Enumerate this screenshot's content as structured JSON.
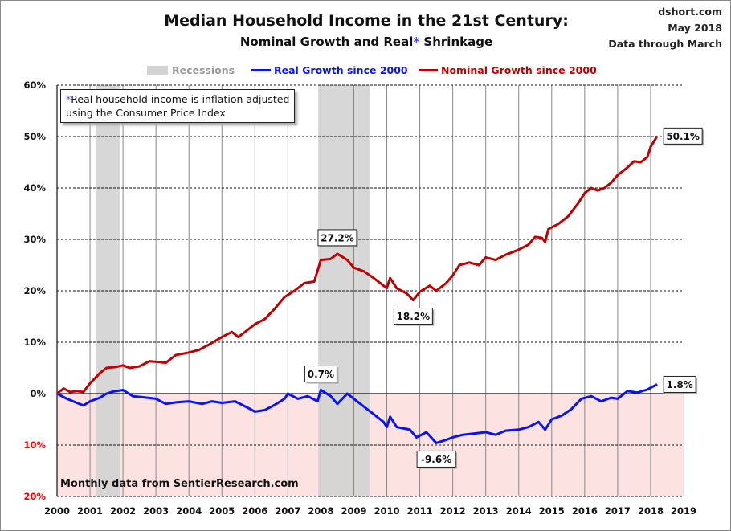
{
  "header": {
    "title": "Median Household Income in the 21st Century:",
    "subtitle_pre": "Nominal Growth and Real",
    "subtitle_ast": "*",
    "subtitle_post": " Shrinkage",
    "source_lines": [
      "dshort.com",
      "May 2018",
      "Data through March"
    ]
  },
  "note": {
    "asterisk": "*",
    "line1": "Real household  income is inflation adjusted",
    "line2": "using  the Consumer Price Index"
  },
  "footer_note": "Monthly data from SentierResearch.com",
  "colors": {
    "real": "#0a14f0",
    "nominal": "#c00000",
    "recession": "#d3d3d3",
    "negative_zone": "#fde2e2",
    "negative_tick": "#ff0000"
  },
  "chart_data": {
    "type": "line",
    "title": "Median Household Income in the 21st Century: Nominal Growth and Real* Shrinkage",
    "xlim": [
      2000,
      2019
    ],
    "ylim": [
      -20,
      60
    ],
    "x_ticks": [
      "2000",
      "2001",
      "2002",
      "2003",
      "2004",
      "2005",
      "2006",
      "2007",
      "2008",
      "2009",
      "2010",
      "2011",
      "2012",
      "2013",
      "2014",
      "2015",
      "2016",
      "2017",
      "2018",
      "2019"
    ],
    "y_ticks": [
      {
        "v": 60,
        "label": "60%"
      },
      {
        "v": 50,
        "label": "50%"
      },
      {
        "v": 40,
        "label": "40%"
      },
      {
        "v": 30,
        "label": "30%"
      },
      {
        "v": 20,
        "label": "20%"
      },
      {
        "v": 10,
        "label": "10%"
      },
      {
        "v": 0,
        "label": "0%"
      },
      {
        "v": -10,
        "label": "10%"
      },
      {
        "v": -20,
        "label": "20%"
      }
    ],
    "grid": true,
    "legend_placement": "top",
    "legend": [
      "Recessions",
      "Real Growth since 2000",
      "Nominal Growth since 2000"
    ],
    "recessions": [
      [
        2001.17,
        2001.92
      ],
      [
        2007.92,
        2009.5
      ]
    ],
    "series": [
      {
        "name": "Real Growth since 2000",
        "points": [
          [
            2000,
            0
          ],
          [
            2000.3,
            -1
          ],
          [
            2000.6,
            -1.8
          ],
          [
            2000.8,
            -2.3
          ],
          [
            2001,
            -1.5
          ],
          [
            2001.3,
            -0.8
          ],
          [
            2001.5,
            0
          ],
          [
            2001.7,
            0.4
          ],
          [
            2002,
            0.7
          ],
          [
            2002.3,
            -0.5
          ],
          [
            2002.6,
            -0.7
          ],
          [
            2003,
            -1
          ],
          [
            2003.3,
            -2
          ],
          [
            2003.6,
            -1.7
          ],
          [
            2004,
            -1.5
          ],
          [
            2004.4,
            -2
          ],
          [
            2004.7,
            -1.5
          ],
          [
            2005,
            -1.8
          ],
          [
            2005.4,
            -1.5
          ],
          [
            2005.8,
            -2.8
          ],
          [
            2006,
            -3.5
          ],
          [
            2006.3,
            -3.2
          ],
          [
            2006.6,
            -2.2
          ],
          [
            2006.9,
            -1
          ],
          [
            2007,
            0
          ],
          [
            2007.3,
            -1
          ],
          [
            2007.6,
            -0.5
          ],
          [
            2007.9,
            -1.5
          ],
          [
            2008,
            0.7
          ],
          [
            2008.3,
            -0.5
          ],
          [
            2008.5,
            -2
          ],
          [
            2008.8,
            0
          ],
          [
            2009,
            -1
          ],
          [
            2009.3,
            -2.5
          ],
          [
            2009.6,
            -4
          ],
          [
            2009.9,
            -5.5
          ],
          [
            2010,
            -6.5
          ],
          [
            2010.1,
            -4.5
          ],
          [
            2010.3,
            -6.5
          ],
          [
            2010.7,
            -7
          ],
          [
            2010.9,
            -8.5
          ],
          [
            2011.2,
            -7.5
          ],
          [
            2011.5,
            -9.6
          ],
          [
            2011.8,
            -9
          ],
          [
            2012,
            -8.5
          ],
          [
            2012.3,
            -8
          ],
          [
            2012.6,
            -7.8
          ],
          [
            2013,
            -7.5
          ],
          [
            2013.3,
            -8
          ],
          [
            2013.6,
            -7.2
          ],
          [
            2014,
            -7
          ],
          [
            2014.3,
            -6.5
          ],
          [
            2014.6,
            -5.5
          ],
          [
            2014.8,
            -7
          ],
          [
            2015,
            -5
          ],
          [
            2015.3,
            -4.3
          ],
          [
            2015.6,
            -3
          ],
          [
            2015.9,
            -1
          ],
          [
            2016.2,
            -0.5
          ],
          [
            2016.5,
            -1.5
          ],
          [
            2016.8,
            -0.8
          ],
          [
            2017,
            -1
          ],
          [
            2017.3,
            0.5
          ],
          [
            2017.6,
            0.2
          ],
          [
            2017.9,
            0.8
          ],
          [
            2018.2,
            1.8
          ]
        ]
      },
      {
        "name": "Nominal Growth since 2000",
        "points": [
          [
            2000,
            0
          ],
          [
            2000.2,
            1
          ],
          [
            2000.4,
            0.3
          ],
          [
            2000.6,
            0.5
          ],
          [
            2000.8,
            0.3
          ],
          [
            2001,
            2
          ],
          [
            2001.3,
            4
          ],
          [
            2001.5,
            5
          ],
          [
            2001.8,
            5.2
          ],
          [
            2002,
            5.5
          ],
          [
            2002.2,
            5
          ],
          [
            2002.5,
            5.3
          ],
          [
            2002.8,
            6.3
          ],
          [
            2003,
            6.2
          ],
          [
            2003.3,
            6
          ],
          [
            2003.6,
            7.5
          ],
          [
            2004,
            8
          ],
          [
            2004.3,
            8.5
          ],
          [
            2004.6,
            9.5
          ],
          [
            2005,
            11
          ],
          [
            2005.3,
            12
          ],
          [
            2005.5,
            11
          ],
          [
            2005.8,
            12.5
          ],
          [
            2006,
            13.5
          ],
          [
            2006.3,
            14.5
          ],
          [
            2006.6,
            16.5
          ],
          [
            2006.9,
            18.8
          ],
          [
            2007.2,
            20
          ],
          [
            2007.5,
            21.5
          ],
          [
            2007.8,
            21.8
          ],
          [
            2008,
            26
          ],
          [
            2008.3,
            26.2
          ],
          [
            2008.5,
            27.2
          ],
          [
            2008.8,
            26
          ],
          [
            2009,
            24.5
          ],
          [
            2009.3,
            23.8
          ],
          [
            2009.6,
            22.5
          ],
          [
            2009.9,
            21
          ],
          [
            2010,
            20.5
          ],
          [
            2010.1,
            22.5
          ],
          [
            2010.3,
            20.5
          ],
          [
            2010.6,
            19.5
          ],
          [
            2010.8,
            18.2
          ],
          [
            2011,
            19.8
          ],
          [
            2011.3,
            21
          ],
          [
            2011.5,
            20
          ],
          [
            2011.8,
            21.5
          ],
          [
            2012,
            23
          ],
          [
            2012.2,
            25
          ],
          [
            2012.5,
            25.5
          ],
          [
            2012.8,
            25
          ],
          [
            2013,
            26.5
          ],
          [
            2013.3,
            26
          ],
          [
            2013.6,
            27
          ],
          [
            2014,
            28
          ],
          [
            2014.3,
            29
          ],
          [
            2014.5,
            30.5
          ],
          [
            2014.7,
            30.3
          ],
          [
            2014.8,
            29.5
          ],
          [
            2014.9,
            32
          ],
          [
            2015.2,
            33
          ],
          [
            2015.5,
            34.5
          ],
          [
            2015.8,
            37
          ],
          [
            2016,
            39
          ],
          [
            2016.2,
            40
          ],
          [
            2016.4,
            39.5
          ],
          [
            2016.6,
            40
          ],
          [
            2016.8,
            41
          ],
          [
            2017,
            42.5
          ],
          [
            2017.3,
            44
          ],
          [
            2017.5,
            45.2
          ],
          [
            2017.7,
            45
          ],
          [
            2017.9,
            46
          ],
          [
            2018,
            48
          ],
          [
            2018.2,
            50.1
          ]
        ]
      }
    ],
    "annotations": [
      {
        "label": "27.2%",
        "x": 2008.5,
        "y": 27.2,
        "pos": "above"
      },
      {
        "label": "18.2%",
        "x": 2010.8,
        "y": 18.2,
        "pos": "below"
      },
      {
        "label": "0.7%",
        "x": 2008,
        "y": 0.7,
        "pos": "above"
      },
      {
        "label": "-9.6%",
        "x": 2011.5,
        "y": -9.6,
        "pos": "below"
      },
      {
        "label": "50.1%",
        "x": 2018.2,
        "y": 50.1,
        "pos": "right"
      },
      {
        "label": "1.8%",
        "x": 2018.2,
        "y": 1.8,
        "pos": "right"
      }
    ]
  }
}
